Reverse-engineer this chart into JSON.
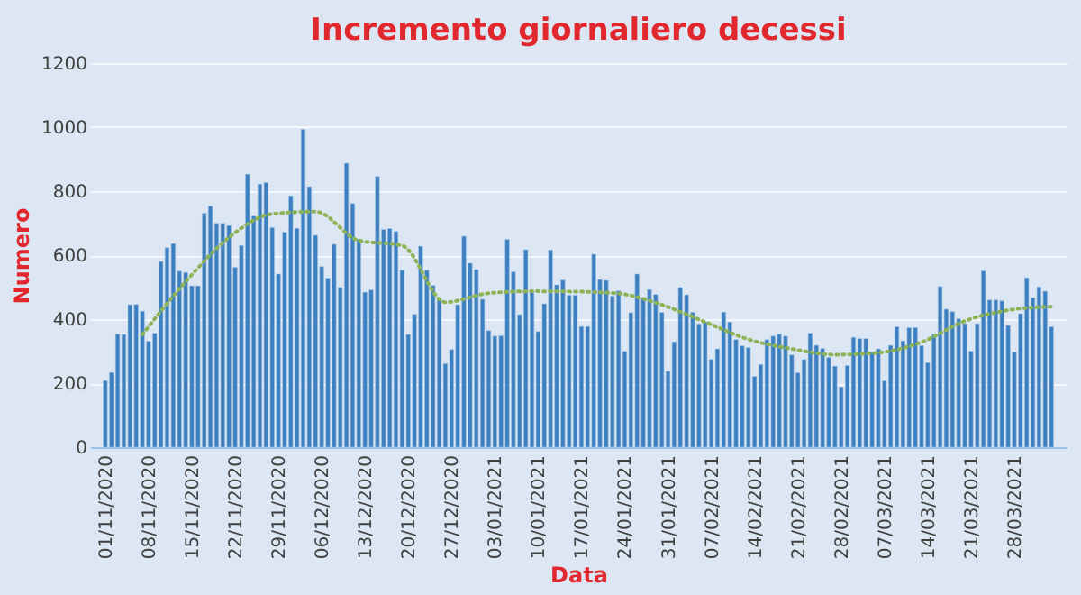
{
  "chart_data": {
    "type": "bar",
    "title": "Incremento giornaliero decessi",
    "xlabel": "Data",
    "ylabel": "Numero",
    "x": [
      "2020-11-01",
      "2020-11-02",
      "2020-11-03",
      "2020-11-04",
      "2020-11-05",
      "2020-11-06",
      "2020-11-07",
      "2020-11-08",
      "2020-11-09",
      "2020-11-10",
      "2020-11-11",
      "2020-11-12",
      "2020-11-13",
      "2020-11-14",
      "2020-11-15",
      "2020-11-16",
      "2020-11-17",
      "2020-11-18",
      "2020-11-19",
      "2020-11-20",
      "2020-11-21",
      "2020-11-22",
      "2020-11-23",
      "2020-11-24",
      "2020-11-25",
      "2020-11-26",
      "2020-11-27",
      "2020-11-28",
      "2020-11-29",
      "2020-11-30",
      "2020-12-01",
      "2020-12-02",
      "2020-12-03",
      "2020-12-04",
      "2020-12-05",
      "2020-12-06",
      "2020-12-07",
      "2020-12-08",
      "2020-12-09",
      "2020-12-10",
      "2020-12-11",
      "2020-12-12",
      "2020-12-13",
      "2020-12-14",
      "2020-12-15",
      "2020-12-16",
      "2020-12-17",
      "2020-12-18",
      "2020-12-19",
      "2020-12-20",
      "2020-12-21",
      "2020-12-22",
      "2020-12-23",
      "2020-12-24",
      "2020-12-25",
      "2020-12-26",
      "2020-12-27",
      "2020-12-28",
      "2020-12-29",
      "2020-12-30",
      "2020-12-31",
      "2021-01-01",
      "2021-01-02",
      "2021-01-03",
      "2021-01-04",
      "2021-01-05",
      "2021-01-06",
      "2021-01-07",
      "2021-01-08",
      "2021-01-09",
      "2021-01-10",
      "2021-01-11",
      "2021-01-12",
      "2021-01-13",
      "2021-01-14",
      "2021-01-15",
      "2021-01-16",
      "2021-01-17",
      "2021-01-18",
      "2021-01-19",
      "2021-01-20",
      "2021-01-21",
      "2021-01-22",
      "2021-01-23",
      "2021-01-24",
      "2021-01-25",
      "2021-01-26",
      "2021-01-27",
      "2021-01-28",
      "2021-01-29",
      "2021-01-30",
      "2021-01-31",
      "2021-02-01",
      "2021-02-02",
      "2021-02-03",
      "2021-02-04",
      "2021-02-05",
      "2021-02-06",
      "2021-02-07",
      "2021-02-08",
      "2021-02-09",
      "2021-02-10",
      "2021-02-11",
      "2021-02-12",
      "2021-02-13",
      "2021-02-14",
      "2021-02-15",
      "2021-02-16",
      "2021-02-17",
      "2021-02-18",
      "2021-02-19",
      "2021-02-20",
      "2021-02-21",
      "2021-02-22",
      "2021-02-23",
      "2021-02-24",
      "2021-02-25",
      "2021-02-26",
      "2021-02-27",
      "2021-02-28",
      "2021-03-01",
      "2021-03-02",
      "2021-03-03",
      "2021-03-04",
      "2021-03-05",
      "2021-03-06",
      "2021-03-07",
      "2021-03-08",
      "2021-03-09",
      "2021-03-10",
      "2021-03-11",
      "2021-03-12",
      "2021-03-13",
      "2021-03-14",
      "2021-03-15",
      "2021-03-16",
      "2021-03-17",
      "2021-03-18",
      "2021-03-19",
      "2021-03-20",
      "2021-03-21",
      "2021-03-22",
      "2021-03-23",
      "2021-03-24",
      "2021-03-25",
      "2021-03-26",
      "2021-03-27",
      "2021-03-28",
      "2021-03-29",
      "2021-03-30",
      "2021-03-31",
      "2021-04-01",
      "2021-04-02",
      "2021-04-03"
    ],
    "series": [
      {
        "color": "#3d7fc1",
        "values": [
          208,
          233,
          353,
          352,
          445,
          446,
          425,
          331,
          356,
          580,
          623,
          636,
          550,
          546,
          504,
          504,
          731,
          753,
          699,
          699,
          692,
          562,
          630,
          853,
          722,
          822,
          827,
          686,
          541,
          672,
          785,
          684,
          993,
          814,
          662,
          564,
          528,
          634,
          499,
          887,
          761,
          649,
          484,
          491,
          846,
          680,
          683,
          674,
          553,
          352,
          415,
          628,
          553,
          505,
          459,
          261,
          305,
          445,
          659,
          575,
          555,
          462,
          364,
          347,
          348,
          649,
          548,
          414,
          617,
          483,
          361,
          448,
          616,
          507,
          522,
          475,
          475,
          377,
          377,
          603,
          524,
          521,
          472,
          488,
          299,
          420,
          541,
          467,
          492,
          477,
          421,
          237,
          329,
          499,
          476,
          421,
          385,
          391,
          274,
          307,
          422,
          391,
          336,
          316,
          311,
          221,
          258,
          336,
          347,
          353,
          347,
          288,
          232,
          274,
          356,
          318,
          308,
          280,
          253,
          188,
          255,
          343,
          339,
          339,
          297,
          307,
          207,
          318,
          376,
          332,
          373,
          373,
          317,
          264,
          354,
          502,
          431,
          423,
          401,
          386,
          300,
          386,
          551,
          460,
          460,
          457,
          380,
          297,
          417,
          529,
          467,
          501,
          487,
          376
        ]
      },
      {
        "type": "line",
        "color": "#8db356",
        "line_style": "dotted",
        "x": [
          "2020-11-07",
          "2020-11-14",
          "2020-11-21",
          "2020-11-28",
          "2020-12-05",
          "2020-12-12",
          "2020-12-19",
          "2020-12-26",
          "2021-01-02",
          "2021-01-09",
          "2021-01-16",
          "2021-01-23",
          "2021-01-30",
          "2021-02-06",
          "2021-02-13",
          "2021-02-20",
          "2021-02-27",
          "2021-03-06",
          "2021-03-13",
          "2021-03-20",
          "2021-03-27",
          "2021-04-03"
        ],
        "values": [
          352,
          517,
          655,
          729,
          736,
          646,
          630,
          453,
          481,
          487,
          486,
          480,
          445,
          391,
          337,
          307,
          289,
          295,
          328,
          394,
          428,
          439
        ]
      }
    ],
    "xlim": [
      "2020-10-31",
      "2021-04-04"
    ],
    "xticks": [
      {
        "value": "2020-11-01",
        "label": "01/11/2020"
      },
      {
        "value": "2020-11-08",
        "label": "08/11/2020"
      },
      {
        "value": "2020-11-15",
        "label": "15/11/2020"
      },
      {
        "value": "2020-11-22",
        "label": "22/11/2020"
      },
      {
        "value": "2020-11-29",
        "label": "29/11/2020"
      },
      {
        "value": "2020-12-06",
        "label": "06/12/2020"
      },
      {
        "value": "2020-12-13",
        "label": "13/12/2020"
      },
      {
        "value": "2020-12-20",
        "label": "20/12/2020"
      },
      {
        "value": "2020-12-27",
        "label": "27/12/2020"
      },
      {
        "value": "2021-01-03",
        "label": "03/01/2021"
      },
      {
        "value": "2021-01-10",
        "label": "10/01/2021"
      },
      {
        "value": "2021-01-17",
        "label": "17/01/2021"
      },
      {
        "value": "2021-01-24",
        "label": "24/01/2021"
      },
      {
        "value": "2021-01-31",
        "label": "31/01/2021"
      },
      {
        "value": "2021-02-07",
        "label": "07/02/2021"
      },
      {
        "value": "2021-02-14",
        "label": "14/02/2021"
      },
      {
        "value": "2021-02-21",
        "label": "21/02/2021"
      },
      {
        "value": "2021-02-28",
        "label": "28/02/2021"
      },
      {
        "value": "2021-03-07",
        "label": "07/03/2021"
      },
      {
        "value": "2021-03-14",
        "label": "14/03/2021"
      },
      {
        "value": "2021-03-21",
        "label": "21/03/2021"
      },
      {
        "value": "2021-03-28",
        "label": "28/03/2021"
      }
    ],
    "ylim": [
      0,
      1200
    ],
    "yticks": [
      0,
      200,
      400,
      600,
      800,
      1000,
      1200
    ],
    "grid": "y"
  }
}
